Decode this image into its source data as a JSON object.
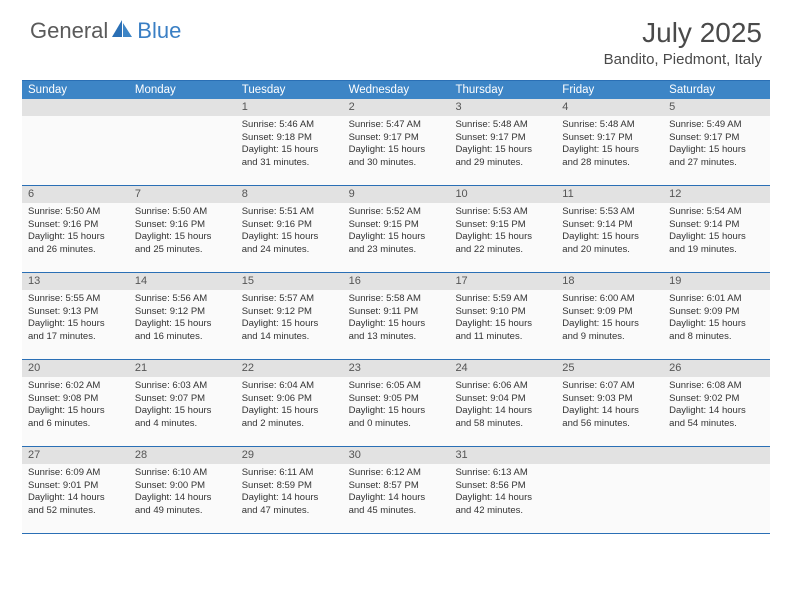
{
  "logo": {
    "text1": "General",
    "text2": "Blue"
  },
  "title": "July 2025",
  "location": "Bandito, Piedmont, Italy",
  "colors": {
    "header_bg": "#3d85c6",
    "header_border": "#2a6fb5",
    "day_num_bg": "#e2e2e2",
    "cell_bg": "#fafafa",
    "logo_blue": "#3a7fc4",
    "text": "#333333"
  },
  "dayNames": [
    "Sunday",
    "Monday",
    "Tuesday",
    "Wednesday",
    "Thursday",
    "Friday",
    "Saturday"
  ],
  "weeks": [
    [
      {
        "num": "",
        "sunrise": "",
        "sunset": "",
        "daylight": ""
      },
      {
        "num": "",
        "sunrise": "",
        "sunset": "",
        "daylight": ""
      },
      {
        "num": "1",
        "sunrise": "Sunrise: 5:46 AM",
        "sunset": "Sunset: 9:18 PM",
        "daylight": "Daylight: 15 hours and 31 minutes."
      },
      {
        "num": "2",
        "sunrise": "Sunrise: 5:47 AM",
        "sunset": "Sunset: 9:17 PM",
        "daylight": "Daylight: 15 hours and 30 minutes."
      },
      {
        "num": "3",
        "sunrise": "Sunrise: 5:48 AM",
        "sunset": "Sunset: 9:17 PM",
        "daylight": "Daylight: 15 hours and 29 minutes."
      },
      {
        "num": "4",
        "sunrise": "Sunrise: 5:48 AM",
        "sunset": "Sunset: 9:17 PM",
        "daylight": "Daylight: 15 hours and 28 minutes."
      },
      {
        "num": "5",
        "sunrise": "Sunrise: 5:49 AM",
        "sunset": "Sunset: 9:17 PM",
        "daylight": "Daylight: 15 hours and 27 minutes."
      }
    ],
    [
      {
        "num": "6",
        "sunrise": "Sunrise: 5:50 AM",
        "sunset": "Sunset: 9:16 PM",
        "daylight": "Daylight: 15 hours and 26 minutes."
      },
      {
        "num": "7",
        "sunrise": "Sunrise: 5:50 AM",
        "sunset": "Sunset: 9:16 PM",
        "daylight": "Daylight: 15 hours and 25 minutes."
      },
      {
        "num": "8",
        "sunrise": "Sunrise: 5:51 AM",
        "sunset": "Sunset: 9:16 PM",
        "daylight": "Daylight: 15 hours and 24 minutes."
      },
      {
        "num": "9",
        "sunrise": "Sunrise: 5:52 AM",
        "sunset": "Sunset: 9:15 PM",
        "daylight": "Daylight: 15 hours and 23 minutes."
      },
      {
        "num": "10",
        "sunrise": "Sunrise: 5:53 AM",
        "sunset": "Sunset: 9:15 PM",
        "daylight": "Daylight: 15 hours and 22 minutes."
      },
      {
        "num": "11",
        "sunrise": "Sunrise: 5:53 AM",
        "sunset": "Sunset: 9:14 PM",
        "daylight": "Daylight: 15 hours and 20 minutes."
      },
      {
        "num": "12",
        "sunrise": "Sunrise: 5:54 AM",
        "sunset": "Sunset: 9:14 PM",
        "daylight": "Daylight: 15 hours and 19 minutes."
      }
    ],
    [
      {
        "num": "13",
        "sunrise": "Sunrise: 5:55 AM",
        "sunset": "Sunset: 9:13 PM",
        "daylight": "Daylight: 15 hours and 17 minutes."
      },
      {
        "num": "14",
        "sunrise": "Sunrise: 5:56 AM",
        "sunset": "Sunset: 9:12 PM",
        "daylight": "Daylight: 15 hours and 16 minutes."
      },
      {
        "num": "15",
        "sunrise": "Sunrise: 5:57 AM",
        "sunset": "Sunset: 9:12 PM",
        "daylight": "Daylight: 15 hours and 14 minutes."
      },
      {
        "num": "16",
        "sunrise": "Sunrise: 5:58 AM",
        "sunset": "Sunset: 9:11 PM",
        "daylight": "Daylight: 15 hours and 13 minutes."
      },
      {
        "num": "17",
        "sunrise": "Sunrise: 5:59 AM",
        "sunset": "Sunset: 9:10 PM",
        "daylight": "Daylight: 15 hours and 11 minutes."
      },
      {
        "num": "18",
        "sunrise": "Sunrise: 6:00 AM",
        "sunset": "Sunset: 9:09 PM",
        "daylight": "Daylight: 15 hours and 9 minutes."
      },
      {
        "num": "19",
        "sunrise": "Sunrise: 6:01 AM",
        "sunset": "Sunset: 9:09 PM",
        "daylight": "Daylight: 15 hours and 8 minutes."
      }
    ],
    [
      {
        "num": "20",
        "sunrise": "Sunrise: 6:02 AM",
        "sunset": "Sunset: 9:08 PM",
        "daylight": "Daylight: 15 hours and 6 minutes."
      },
      {
        "num": "21",
        "sunrise": "Sunrise: 6:03 AM",
        "sunset": "Sunset: 9:07 PM",
        "daylight": "Daylight: 15 hours and 4 minutes."
      },
      {
        "num": "22",
        "sunrise": "Sunrise: 6:04 AM",
        "sunset": "Sunset: 9:06 PM",
        "daylight": "Daylight: 15 hours and 2 minutes."
      },
      {
        "num": "23",
        "sunrise": "Sunrise: 6:05 AM",
        "sunset": "Sunset: 9:05 PM",
        "daylight": "Daylight: 15 hours and 0 minutes."
      },
      {
        "num": "24",
        "sunrise": "Sunrise: 6:06 AM",
        "sunset": "Sunset: 9:04 PM",
        "daylight": "Daylight: 14 hours and 58 minutes."
      },
      {
        "num": "25",
        "sunrise": "Sunrise: 6:07 AM",
        "sunset": "Sunset: 9:03 PM",
        "daylight": "Daylight: 14 hours and 56 minutes."
      },
      {
        "num": "26",
        "sunrise": "Sunrise: 6:08 AM",
        "sunset": "Sunset: 9:02 PM",
        "daylight": "Daylight: 14 hours and 54 minutes."
      }
    ],
    [
      {
        "num": "27",
        "sunrise": "Sunrise: 6:09 AM",
        "sunset": "Sunset: 9:01 PM",
        "daylight": "Daylight: 14 hours and 52 minutes."
      },
      {
        "num": "28",
        "sunrise": "Sunrise: 6:10 AM",
        "sunset": "Sunset: 9:00 PM",
        "daylight": "Daylight: 14 hours and 49 minutes."
      },
      {
        "num": "29",
        "sunrise": "Sunrise: 6:11 AM",
        "sunset": "Sunset: 8:59 PM",
        "daylight": "Daylight: 14 hours and 47 minutes."
      },
      {
        "num": "30",
        "sunrise": "Sunrise: 6:12 AM",
        "sunset": "Sunset: 8:57 PM",
        "daylight": "Daylight: 14 hours and 45 minutes."
      },
      {
        "num": "31",
        "sunrise": "Sunrise: 6:13 AM",
        "sunset": "Sunset: 8:56 PM",
        "daylight": "Daylight: 14 hours and 42 minutes."
      },
      {
        "num": "",
        "sunrise": "",
        "sunset": "",
        "daylight": ""
      },
      {
        "num": "",
        "sunrise": "",
        "sunset": "",
        "daylight": ""
      }
    ]
  ]
}
